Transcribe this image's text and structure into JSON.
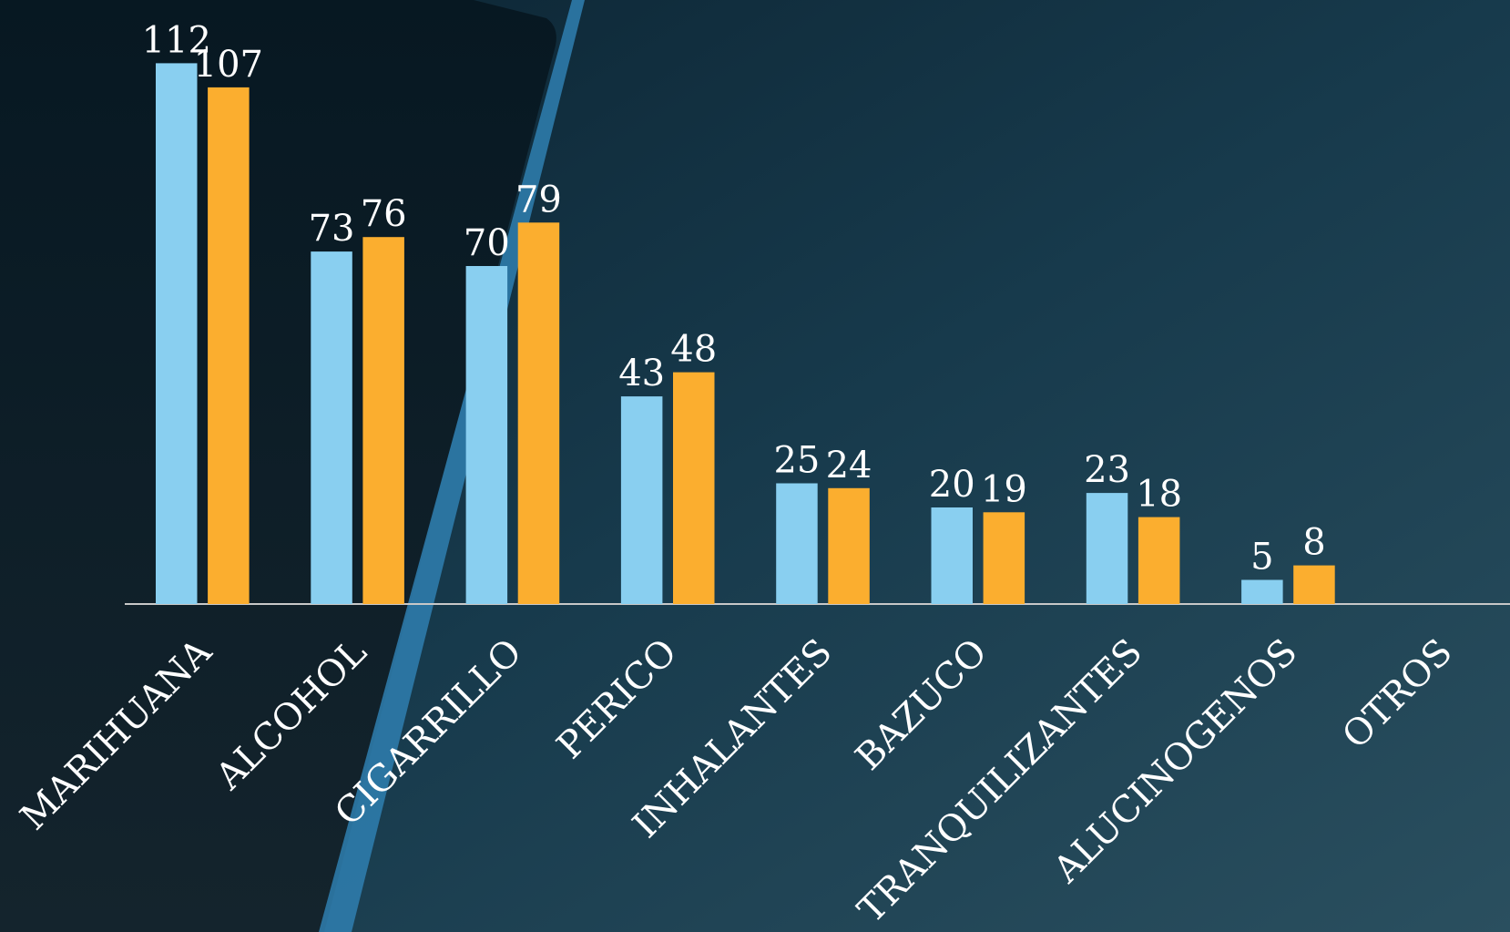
{
  "chart_data": {
    "type": "bar",
    "categories": [
      "MARIHUANA",
      "ALCOHOL",
      "CIGARRILLO",
      "PERICO",
      "INHALANTES",
      "BAZUCO",
      "TRANQUILIZANTES",
      "ALUCINOGENOS",
      "OTROS"
    ],
    "series": [
      {
        "color": "#89cff0",
        "values": [
          112,
          73,
          70,
          43,
          25,
          20,
          23,
          5,
          null
        ]
      },
      {
        "color": "#fbae2f",
        "values": [
          107,
          76,
          79,
          48,
          24,
          19,
          18,
          8,
          null
        ]
      }
    ],
    "ylim": [
      0,
      120
    ]
  }
}
